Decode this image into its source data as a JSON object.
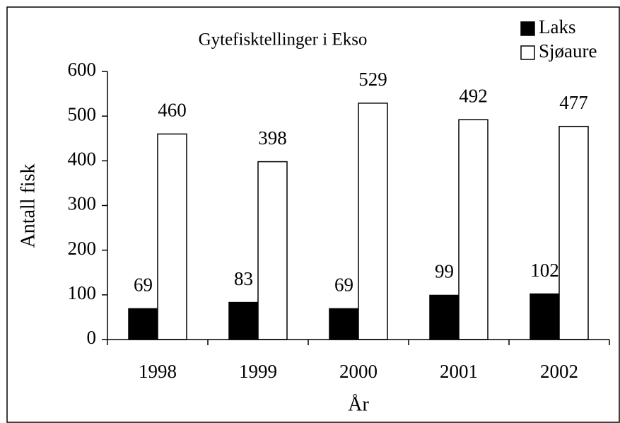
{
  "chart_data": {
    "type": "bar",
    "title": "Gytefisktellinger i Ekso",
    "x_label": "År",
    "y_label": "Antall fisk",
    "categories": [
      "1998",
      "1999",
      "2000",
      "2001",
      "2002"
    ],
    "series": [
      {
        "name": "Laks",
        "color": "#000000",
        "values": [
          69,
          83,
          69,
          99,
          102
        ]
      },
      {
        "name": "Sjøaure",
        "color": "#ffffff",
        "values": [
          460,
          398,
          529,
          492,
          477
        ]
      }
    ],
    "ylim": [
      0,
      600
    ],
    "yticks": [
      0,
      100,
      200,
      300,
      400,
      500,
      600
    ],
    "legend": "upper right"
  }
}
